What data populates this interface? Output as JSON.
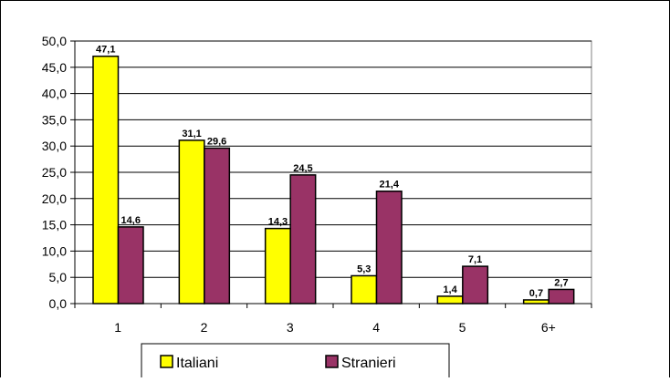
{
  "chart_data": {
    "type": "bar",
    "categories": [
      "1",
      "2",
      "3",
      "4",
      "5",
      "6+"
    ],
    "series": [
      {
        "name": "Italiani",
        "color": "#FFFF00",
        "values": [
          47.1,
          31.1,
          14.3,
          5.3,
          1.4,
          0.7
        ],
        "labels": [
          "47,1",
          "31,1",
          "14,3",
          "5,3",
          "1,4",
          "0,7"
        ]
      },
      {
        "name": "Stranieri",
        "color": "#993366",
        "values": [
          14.6,
          29.6,
          24.5,
          21.4,
          7.1,
          2.7
        ],
        "labels": [
          "14,6",
          "29,6",
          "24,5",
          "21,4",
          "7,1",
          "2,7"
        ]
      }
    ],
    "y_ticks": [
      0,
      5,
      10,
      15,
      20,
      25,
      30,
      35,
      40,
      45,
      50
    ],
    "y_tick_labels": [
      "0,0",
      "5,0",
      "10,0",
      "15,0",
      "20,0",
      "25,0",
      "30,0",
      "35,0",
      "40,0",
      "45,0",
      "50,0"
    ],
    "ylim": [
      0,
      50
    ],
    "grid": true,
    "legend_position": "bottom"
  }
}
